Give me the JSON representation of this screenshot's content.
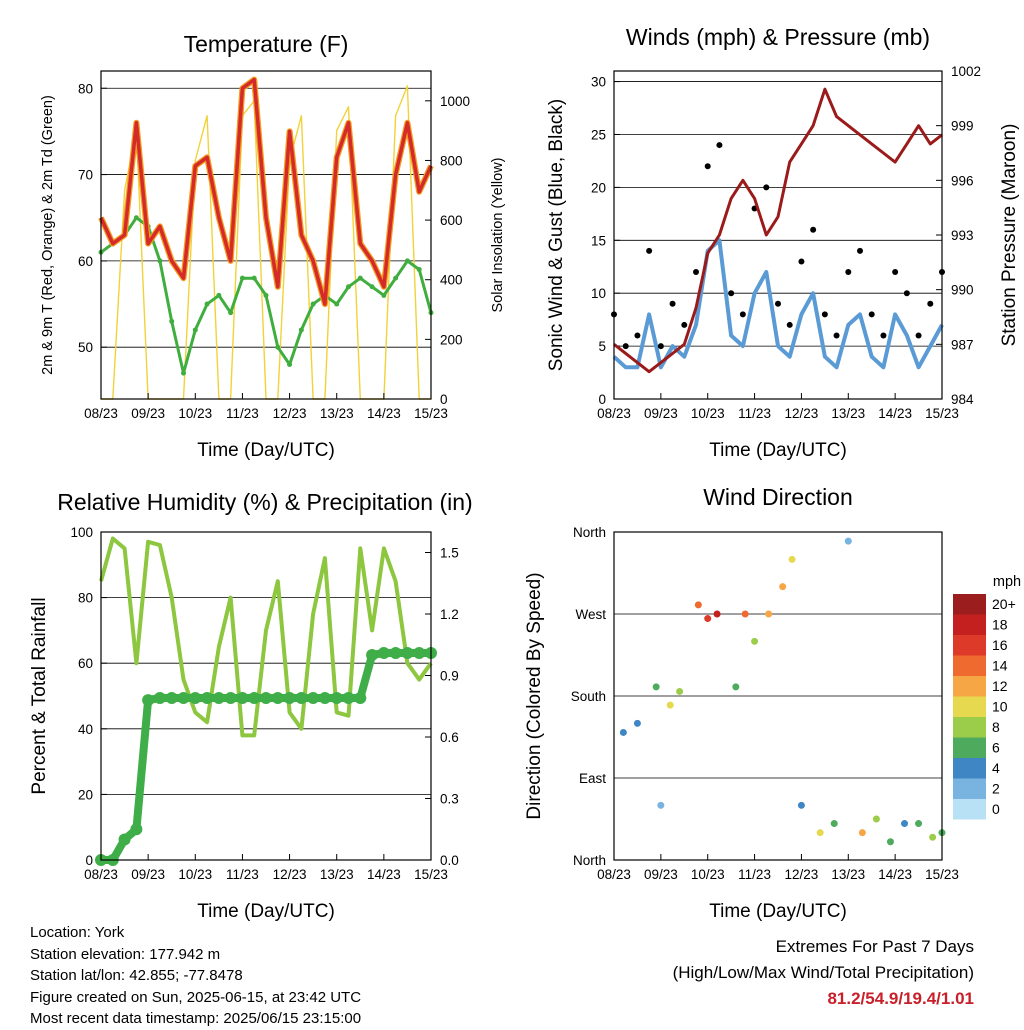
{
  "x_tick_labels": [
    "08/23",
    "09/23",
    "10/23",
    "11/23",
    "12/23",
    "13/23",
    "14/23",
    "15/23"
  ],
  "x_axis_label": "Time (Day/UTC)",
  "colors": {
    "temp_red": "#d42a2a",
    "temp_orange": "#f39c1f",
    "dewpoint_green": "#3fae3f",
    "solar_yellow": "#f2d23a",
    "sonic_blue": "#5b9bd5",
    "gust_black": "#000000",
    "pressure_maroon": "#9b1b1b",
    "rh_lightgreen": "#8dc63f",
    "precip_green": "#3fae48"
  },
  "chart_data": [
    {
      "type": "line",
      "title": "Temperature (F)",
      "xlabel": "Time (Day/UTC)",
      "ylabel": "2m & 9m T (Red, Orange) & 2m Td (Green)",
      "y2label": "Solar Insolation (Yellow)",
      "ylim": [
        44,
        82
      ],
      "y_ticks": [
        50,
        60,
        70,
        80
      ],
      "y2lim": [
        0,
        1100
      ],
      "y2_ticks": [
        0,
        200,
        400,
        600,
        800,
        1000
      ],
      "x": [
        0,
        0.25,
        0.5,
        0.75,
        1,
        1.25,
        1.5,
        1.75,
        2,
        2.25,
        2.5,
        2.75,
        3,
        3.25,
        3.5,
        3.75,
        4,
        4.25,
        4.5,
        4.75,
        5,
        5.25,
        5.5,
        5.75,
        6,
        6.25,
        6.5,
        6.75,
        7
      ],
      "series": [
        {
          "values": [
            65,
            62,
            63,
            76,
            62,
            64,
            60,
            58,
            71,
            72,
            65,
            60,
            80,
            81,
            65,
            57,
            75,
            63,
            60,
            55,
            72,
            76,
            62,
            60,
            57,
            70,
            76,
            68,
            71
          ]
        },
        {
          "values": [
            61,
            62,
            63,
            65,
            64,
            60,
            53,
            47,
            52,
            55,
            56,
            54,
            58,
            58,
            56,
            50,
            48,
            52,
            55,
            56,
            55,
            57,
            58,
            57,
            56,
            58,
            60,
            59,
            54
          ]
        },
        {
          "values": [
            0,
            0,
            700,
            900,
            0,
            0,
            0,
            0,
            800,
            950,
            0,
            0,
            950,
            1000,
            0,
            0,
            800,
            950,
            0,
            0,
            900,
            980,
            0,
            0,
            0,
            950,
            1050,
            0,
            0
          ]
        }
      ]
    },
    {
      "type": "scatter",
      "title": "Winds (mph) & Pressure (mb)",
      "xlabel": "Time (Day/UTC)",
      "ylabel": "Sonic Wind & Gust (Blue, Black)",
      "y2label": "Station Pressure (Maroon)",
      "ylim": [
        0,
        31
      ],
      "y_ticks": [
        0,
        5,
        10,
        15,
        20,
        25,
        30
      ],
      "y2lim": [
        984,
        1002
      ],
      "y2_ticks": [
        984,
        987,
        990,
        993,
        996,
        999,
        1002
      ],
      "x": [
        0,
        0.25,
        0.5,
        0.75,
        1,
        1.25,
        1.5,
        1.75,
        2,
        2.25,
        2.5,
        2.75,
        3,
        3.25,
        3.5,
        3.75,
        4,
        4.25,
        4.5,
        4.75,
        5,
        5.25,
        5.5,
        5.75,
        6,
        6.25,
        6.5,
        6.75,
        7
      ],
      "series": [
        {
          "values": [
            4,
            3,
            3,
            8,
            3,
            5,
            4,
            7,
            14,
            15,
            6,
            5,
            10,
            12,
            5,
            4,
            8,
            10,
            4,
            3,
            7,
            8,
            4,
            3,
            8,
            6,
            3,
            5,
            7
          ]
        },
        {
          "values": [
            8,
            5,
            6,
            14,
            5,
            9,
            7,
            12,
            22,
            24,
            10,
            8,
            18,
            20,
            9,
            7,
            13,
            16,
            8,
            6,
            12,
            14,
            8,
            6,
            12,
            10,
            6,
            9,
            12
          ]
        },
        {
          "values": [
            987,
            986.5,
            986,
            985.5,
            986,
            986.5,
            987,
            989,
            992,
            993,
            995,
            996,
            995,
            993,
            994,
            997,
            998,
            999,
            1001,
            999.5,
            999,
            998.5,
            998,
            997.5,
            997,
            998,
            999,
            998,
            998.5
          ]
        }
      ]
    },
    {
      "type": "line",
      "title": "Relative Humidity (%) & Precipitation (in)",
      "xlabel": "Time (Day/UTC)",
      "ylabel": "Percent & Total Rainfall",
      "ylim": [
        0,
        100
      ],
      "y_ticks": [
        0,
        20,
        40,
        60,
        80,
        100
      ],
      "y2lim": [
        0,
        1.6
      ],
      "y2_ticks": [
        0.0,
        0.3,
        0.6,
        0.9,
        1.2,
        1.5
      ],
      "x": [
        0,
        0.25,
        0.5,
        0.75,
        1,
        1.25,
        1.5,
        1.75,
        2,
        2.25,
        2.5,
        2.75,
        3,
        3.25,
        3.5,
        3.75,
        4,
        4.25,
        4.5,
        4.75,
        5,
        5.25,
        5.5,
        5.75,
        6,
        6.25,
        6.5,
        6.75,
        7
      ],
      "series": [
        {
          "values": [
            85,
            98,
            95,
            60,
            97,
            96,
            80,
            55,
            45,
            42,
            65,
            80,
            38,
            38,
            70,
            85,
            45,
            40,
            75,
            92,
            45,
            44,
            95,
            70,
            95,
            85,
            60,
            55,
            60
          ]
        },
        {
          "values": [
            0,
            0,
            0.1,
            0.15,
            0.78,
            0.79,
            0.79,
            0.79,
            0.79,
            0.79,
            0.79,
            0.79,
            0.79,
            0.79,
            0.79,
            0.79,
            0.79,
            0.79,
            0.79,
            0.79,
            0.79,
            0.79,
            0.79,
            1.0,
            1.01,
            1.01,
            1.01,
            1.01,
            1.01
          ]
        }
      ]
    },
    {
      "type": "scatter",
      "title": "Wind Direction",
      "xlabel": "Time (Day/UTC)",
      "ylabel": "Direction (Colored By Speed)",
      "y_tick_labels": [
        "North",
        "East",
        "South",
        "West",
        "North"
      ],
      "ylim": [
        0,
        360
      ],
      "legend": {
        "title": "mph",
        "placement": "right",
        "labels": [
          "20+",
          "18",
          "16",
          "14",
          "12",
          "10",
          "8",
          "6",
          "4",
          "2",
          "0"
        ],
        "colors": [
          "#9b1d1d",
          "#c4201f",
          "#dd3a2a",
          "#ef6a2e",
          "#f7a646",
          "#e6d94f",
          "#9ccd4a",
          "#4eab5e",
          "#3f86c5",
          "#79b3e0",
          "#b9e1f6"
        ]
      },
      "x": [
        0.2,
        0.5,
        0.9,
        1.0,
        1.2,
        1.4,
        1.8,
        2.0,
        2.2,
        2.6,
        2.8,
        3.0,
        3.3,
        3.6,
        3.8,
        4.0,
        4.4,
        4.7,
        5.0,
        5.3,
        5.6,
        5.9,
        6.2,
        6.5,
        6.8,
        7.0
      ],
      "y": [
        140,
        150,
        190,
        60,
        170,
        185,
        280,
        265,
        270,
        190,
        270,
        240,
        270,
        300,
        330,
        60,
        30,
        40,
        350,
        30,
        45,
        20,
        40,
        40,
        25,
        30
      ],
      "speeds": [
        3,
        4,
        6,
        2,
        10,
        7,
        14,
        16,
        18,
        6,
        14,
        8,
        12,
        12,
        10,
        3,
        10,
        5,
        2,
        12,
        8,
        6,
        3,
        5,
        8,
        6
      ]
    }
  ],
  "info": {
    "location": "Location: York",
    "elevation": "Station elevation: 177.942 m",
    "latlon": "Station lat/lon: 42.855; -77.8478",
    "created": "Figure created on Sun, 2025-06-15, at 23:42 UTC",
    "recent": "Most recent data timestamp: 2025/06/15 23:15:00"
  },
  "extremes": {
    "title": "Extremes For Past 7 Days",
    "subtitle": "(High/Low/Max Wind/Total Precipitation)",
    "values": "81.2/54.9/19.4/1.01"
  }
}
